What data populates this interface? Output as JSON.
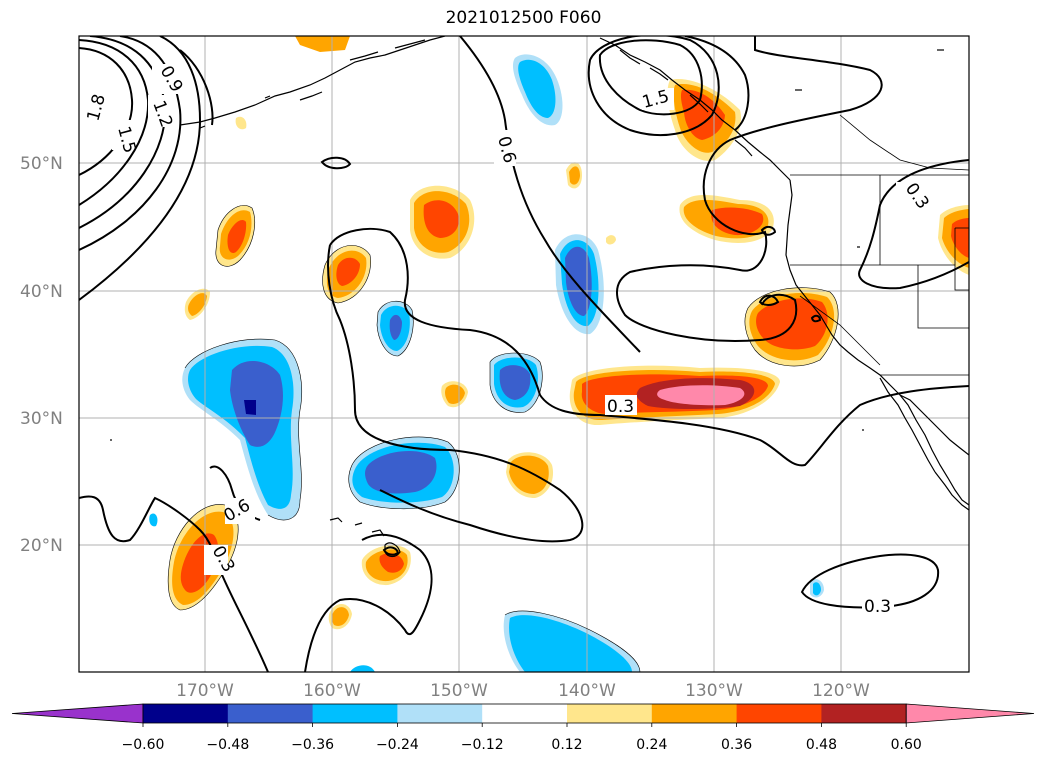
{
  "title": "2021012500 F060",
  "map": {
    "lat_labels": [
      "50°N",
      "40°N",
      "30°N",
      "20°N"
    ],
    "lon_labels": [
      "170°W",
      "160°W",
      "150°W",
      "140°W",
      "130°W",
      "120°W"
    ],
    "contour_labels": [
      "1.8",
      "1.5",
      "1.2",
      "0.9",
      "0.6",
      "1.5",
      "0.3",
      "0.3",
      "0.6",
      "0.3",
      "0.3"
    ]
  },
  "colorbar": {
    "tick_labels": [
      "−0.60",
      "−0.48",
      "−0.36",
      "−0.24",
      "−0.12",
      "0.12",
      "0.24",
      "0.36",
      "0.48",
      "0.60"
    ],
    "colors": [
      "#9932cc",
      "#00008b",
      "#3a5fcd",
      "#00bfff",
      "#b0e0f8",
      "#ffffff",
      "#ffe68c",
      "#ffa500",
      "#ff4500",
      "#b22222",
      "#ff88aa"
    ]
  }
}
